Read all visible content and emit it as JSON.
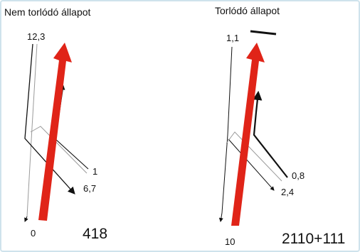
{
  "left_panel": {
    "title": "Nem torlódó állapot",
    "labels": {
      "top": "12,3",
      "mid1": "1",
      "mid2": "6,7",
      "bottom": "0"
    },
    "total": "418"
  },
  "right_panel": {
    "title": "Torlódó állapot",
    "labels": {
      "top": "1,1",
      "mid1": "0,8",
      "mid2": "2,4",
      "bottom": "10"
    },
    "total": "2110+111"
  },
  "colors": {
    "main_arrow": "#e02418",
    "line": "#111111",
    "light_line": "#9a9a9a",
    "frame": "#cfe3ec"
  }
}
